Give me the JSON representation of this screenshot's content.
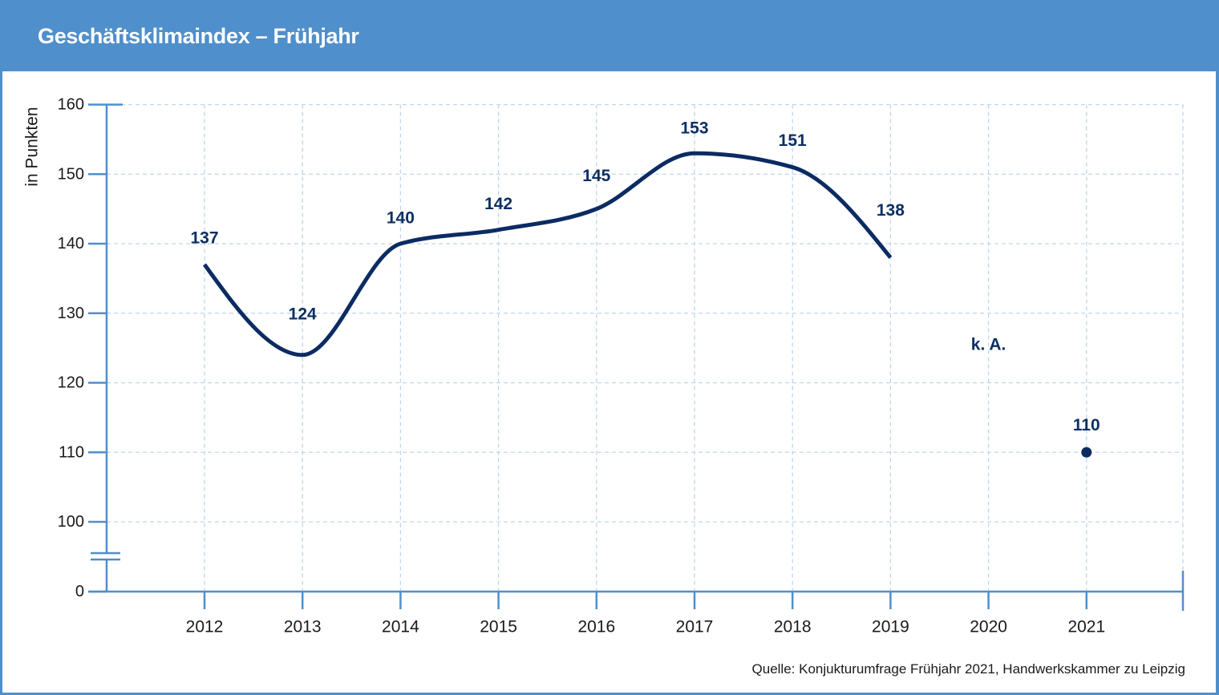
{
  "source": "Quelle: Konjukturumfrage Frühjahr 2021, Handwerkskammer zu Leipzig",
  "colors": {
    "frame": "#4f8fcc",
    "axis": "#4f8fcc",
    "grid": "#bcd7ef",
    "line": "#0b2b62",
    "label": "#0d2f63",
    "text": "#1a1a1a"
  },
  "chart_data": {
    "type": "line",
    "title": "Geschäftsklimaindex – Frühjahr",
    "xlabel": "",
    "ylabel": "in Punkten",
    "categories": [
      "2012",
      "2013",
      "2014",
      "2015",
      "2016",
      "2017",
      "2018",
      "2019",
      "2020",
      "2021"
    ],
    "series": [
      {
        "values": [
          137,
          124,
          140,
          142,
          145,
          153,
          151,
          138,
          null,
          110
        ],
        "color": "#0b2b62"
      }
    ],
    "yticks": [
      0,
      100,
      110,
      120,
      130,
      140,
      150,
      160
    ],
    "ylim": [
      0,
      160
    ],
    "y_axis_break": {
      "from": 0,
      "to": 100
    },
    "grid": true,
    "data_labels": true,
    "annotations": [
      {
        "category": "2020",
        "text": "k. A."
      }
    ]
  }
}
